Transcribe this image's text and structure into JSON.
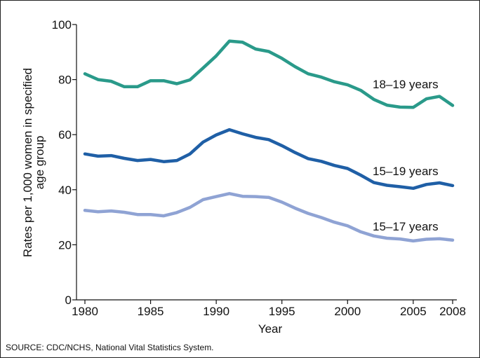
{
  "chart_data": {
    "type": "line",
    "title": "",
    "xlabel": "Year",
    "ylabel_lines": [
      "Rates per 1,000 women in specified",
      "age group"
    ],
    "xlim": [
      1980,
      2008
    ],
    "ylim": [
      0,
      100
    ],
    "x_ticks": [
      1980,
      1985,
      1990,
      1995,
      2000,
      2005,
      2008
    ],
    "y_ticks": [
      0,
      20,
      40,
      60,
      80,
      100
    ],
    "grid": false,
    "legend": "none",
    "x": [
      1980,
      1981,
      1982,
      1983,
      1984,
      1985,
      1986,
      1987,
      1988,
      1989,
      1990,
      1991,
      1992,
      1993,
      1994,
      1995,
      1996,
      1997,
      1998,
      1999,
      2000,
      2001,
      2002,
      2003,
      2004,
      2005,
      2006,
      2007,
      2008
    ],
    "series": [
      {
        "name": "18–19 years",
        "color": "#2a9a8a",
        "values": [
          82.1,
          80.0,
          79.4,
          77.4,
          77.4,
          79.6,
          79.6,
          78.5,
          79.9,
          84.2,
          88.6,
          94.0,
          93.6,
          91.1,
          90.2,
          87.7,
          84.7,
          82.1,
          80.9,
          79.2,
          78.1,
          76.1,
          72.8,
          70.7,
          70.0,
          69.9,
          73.0,
          73.9,
          70.6
        ]
      },
      {
        "name": "15–19 years",
        "color": "#1f5fa6",
        "values": [
          53.0,
          52.2,
          52.4,
          51.4,
          50.6,
          51.0,
          50.2,
          50.6,
          53.0,
          57.3,
          59.9,
          61.8,
          60.3,
          59.0,
          58.2,
          56.0,
          53.5,
          51.3,
          50.3,
          48.8,
          47.7,
          45.3,
          42.6,
          41.6,
          41.1,
          40.5,
          41.9,
          42.5,
          41.5
        ]
      },
      {
        "name": "15–17 years",
        "color": "#8fa3d4",
        "values": [
          32.5,
          32.0,
          32.3,
          31.8,
          31.0,
          31.0,
          30.5,
          31.7,
          33.6,
          36.4,
          37.5,
          38.6,
          37.6,
          37.5,
          37.2,
          35.5,
          33.3,
          31.4,
          29.9,
          28.2,
          26.9,
          24.7,
          23.2,
          22.4,
          22.1,
          21.4,
          22.0,
          22.2,
          21.7
        ]
      }
    ]
  },
  "source": "SOURCE: CDC/NCHS, National Vital Statistics System."
}
